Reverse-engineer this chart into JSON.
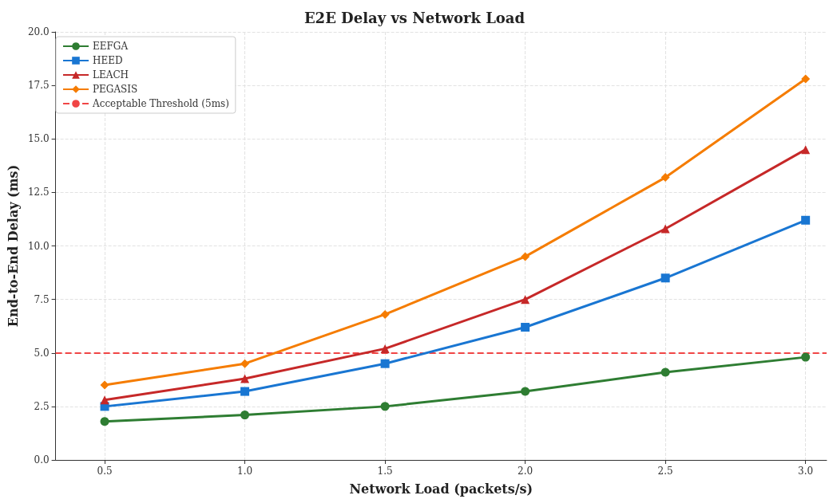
{
  "chart_data": {
    "type": "line",
    "title": "E2E Delay vs Network Load",
    "xlabel": "Network Load (packets/s)",
    "ylabel": "End-to-End Delay (ms)",
    "x": [
      0.5,
      1.0,
      1.5,
      2.0,
      2.5,
      3.0
    ],
    "series": [
      {
        "name": "EEFGA",
        "color": "#2e7d32",
        "marker": "circle",
        "values": [
          1.8,
          2.1,
          2.5,
          3.2,
          4.1,
          4.8
        ]
      },
      {
        "name": "HEED",
        "color": "#1976d2",
        "marker": "square",
        "values": [
          2.5,
          3.2,
          4.5,
          6.2,
          8.5,
          11.2
        ]
      },
      {
        "name": "LEACH",
        "color": "#c62828",
        "marker": "triangle",
        "values": [
          2.8,
          3.8,
          5.2,
          7.5,
          10.8,
          14.5
        ]
      },
      {
        "name": "PEGASIS",
        "color": "#f57c00",
        "marker": "diamond",
        "values": [
          3.5,
          4.5,
          6.8,
          9.5,
          13.2,
          17.8
        ]
      }
    ],
    "ref_lines": [
      {
        "axis": "y",
        "value": 5,
        "label": "Acceptable Threshold (5ms)",
        "color": "#f04545",
        "line_style": "dashed"
      }
    ],
    "xlim": [
      0.325,
      3.075
    ],
    "xticks": [
      {
        "value": 0.5,
        "label": "0.5"
      },
      {
        "value": 1,
        "label": "1.0"
      },
      {
        "value": 1.5,
        "label": "1.5"
      },
      {
        "value": 2,
        "label": "2.0"
      },
      {
        "value": 2.5,
        "label": "2.5"
      },
      {
        "value": 3,
        "label": "3.0"
      }
    ],
    "ylim": [
      0,
      20
    ],
    "yticks": [
      {
        "value": 0,
        "label": "0.0"
      },
      2.5,
      {
        "value": 5,
        "label": "5.0"
      },
      7.5,
      {
        "value": 10,
        "label": "10.0"
      },
      12.5,
      {
        "value": 15,
        "label": "15.0"
      },
      17.5,
      {
        "value": 20,
        "label": "20.0"
      }
    ],
    "grid": true,
    "legend": "top left",
    "line_style": "solid"
  }
}
